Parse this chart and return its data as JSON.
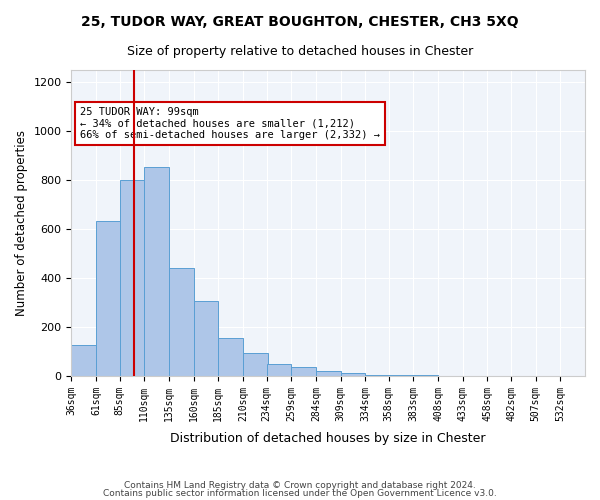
{
  "title1": "25, TUDOR WAY, GREAT BOUGHTON, CHESTER, CH3 5XQ",
  "title2": "Size of property relative to detached houses in Chester",
  "xlabel": "Distribution of detached houses by size in Chester",
  "ylabel": "Number of detached properties",
  "bin_labels": [
    "36sqm",
    "61sqm",
    "85sqm",
    "110sqm",
    "135sqm",
    "160sqm",
    "185sqm",
    "210sqm",
    "234sqm",
    "259sqm",
    "284sqm",
    "309sqm",
    "334sqm",
    "358sqm",
    "383sqm",
    "408sqm",
    "433sqm",
    "458sqm",
    "482sqm",
    "507sqm",
    "532sqm"
  ],
  "bin_edges": [
    36,
    61,
    85,
    110,
    135,
    160,
    185,
    210,
    234,
    259,
    284,
    309,
    334,
    358,
    383,
    408,
    433,
    458,
    482,
    507,
    532
  ],
  "bar_heights": [
    125,
    635,
    800,
    855,
    440,
    305,
    155,
    95,
    50,
    35,
    20,
    10,
    5,
    3,
    2,
    1,
    1,
    1,
    1,
    1
  ],
  "bar_color": "#aec6e8",
  "bar_edgecolor": "#5a9fd4",
  "vline_x": 99,
  "vline_color": "#cc0000",
  "annotation_text": "25 TUDOR WAY: 99sqm\n← 34% of detached houses are smaller (1,212)\n66% of semi-detached houses are larger (2,332) →",
  "annotation_box_color": "#ffffff",
  "annotation_box_edgecolor": "#cc0000",
  "ylim": [
    0,
    1250
  ],
  "yticks": [
    0,
    200,
    400,
    600,
    800,
    1000,
    1200
  ],
  "footer1": "Contains HM Land Registry data © Crown copyright and database right 2024.",
  "footer2": "Contains public sector information licensed under the Open Government Licence v3.0.",
  "bg_color": "#f0f4fa"
}
